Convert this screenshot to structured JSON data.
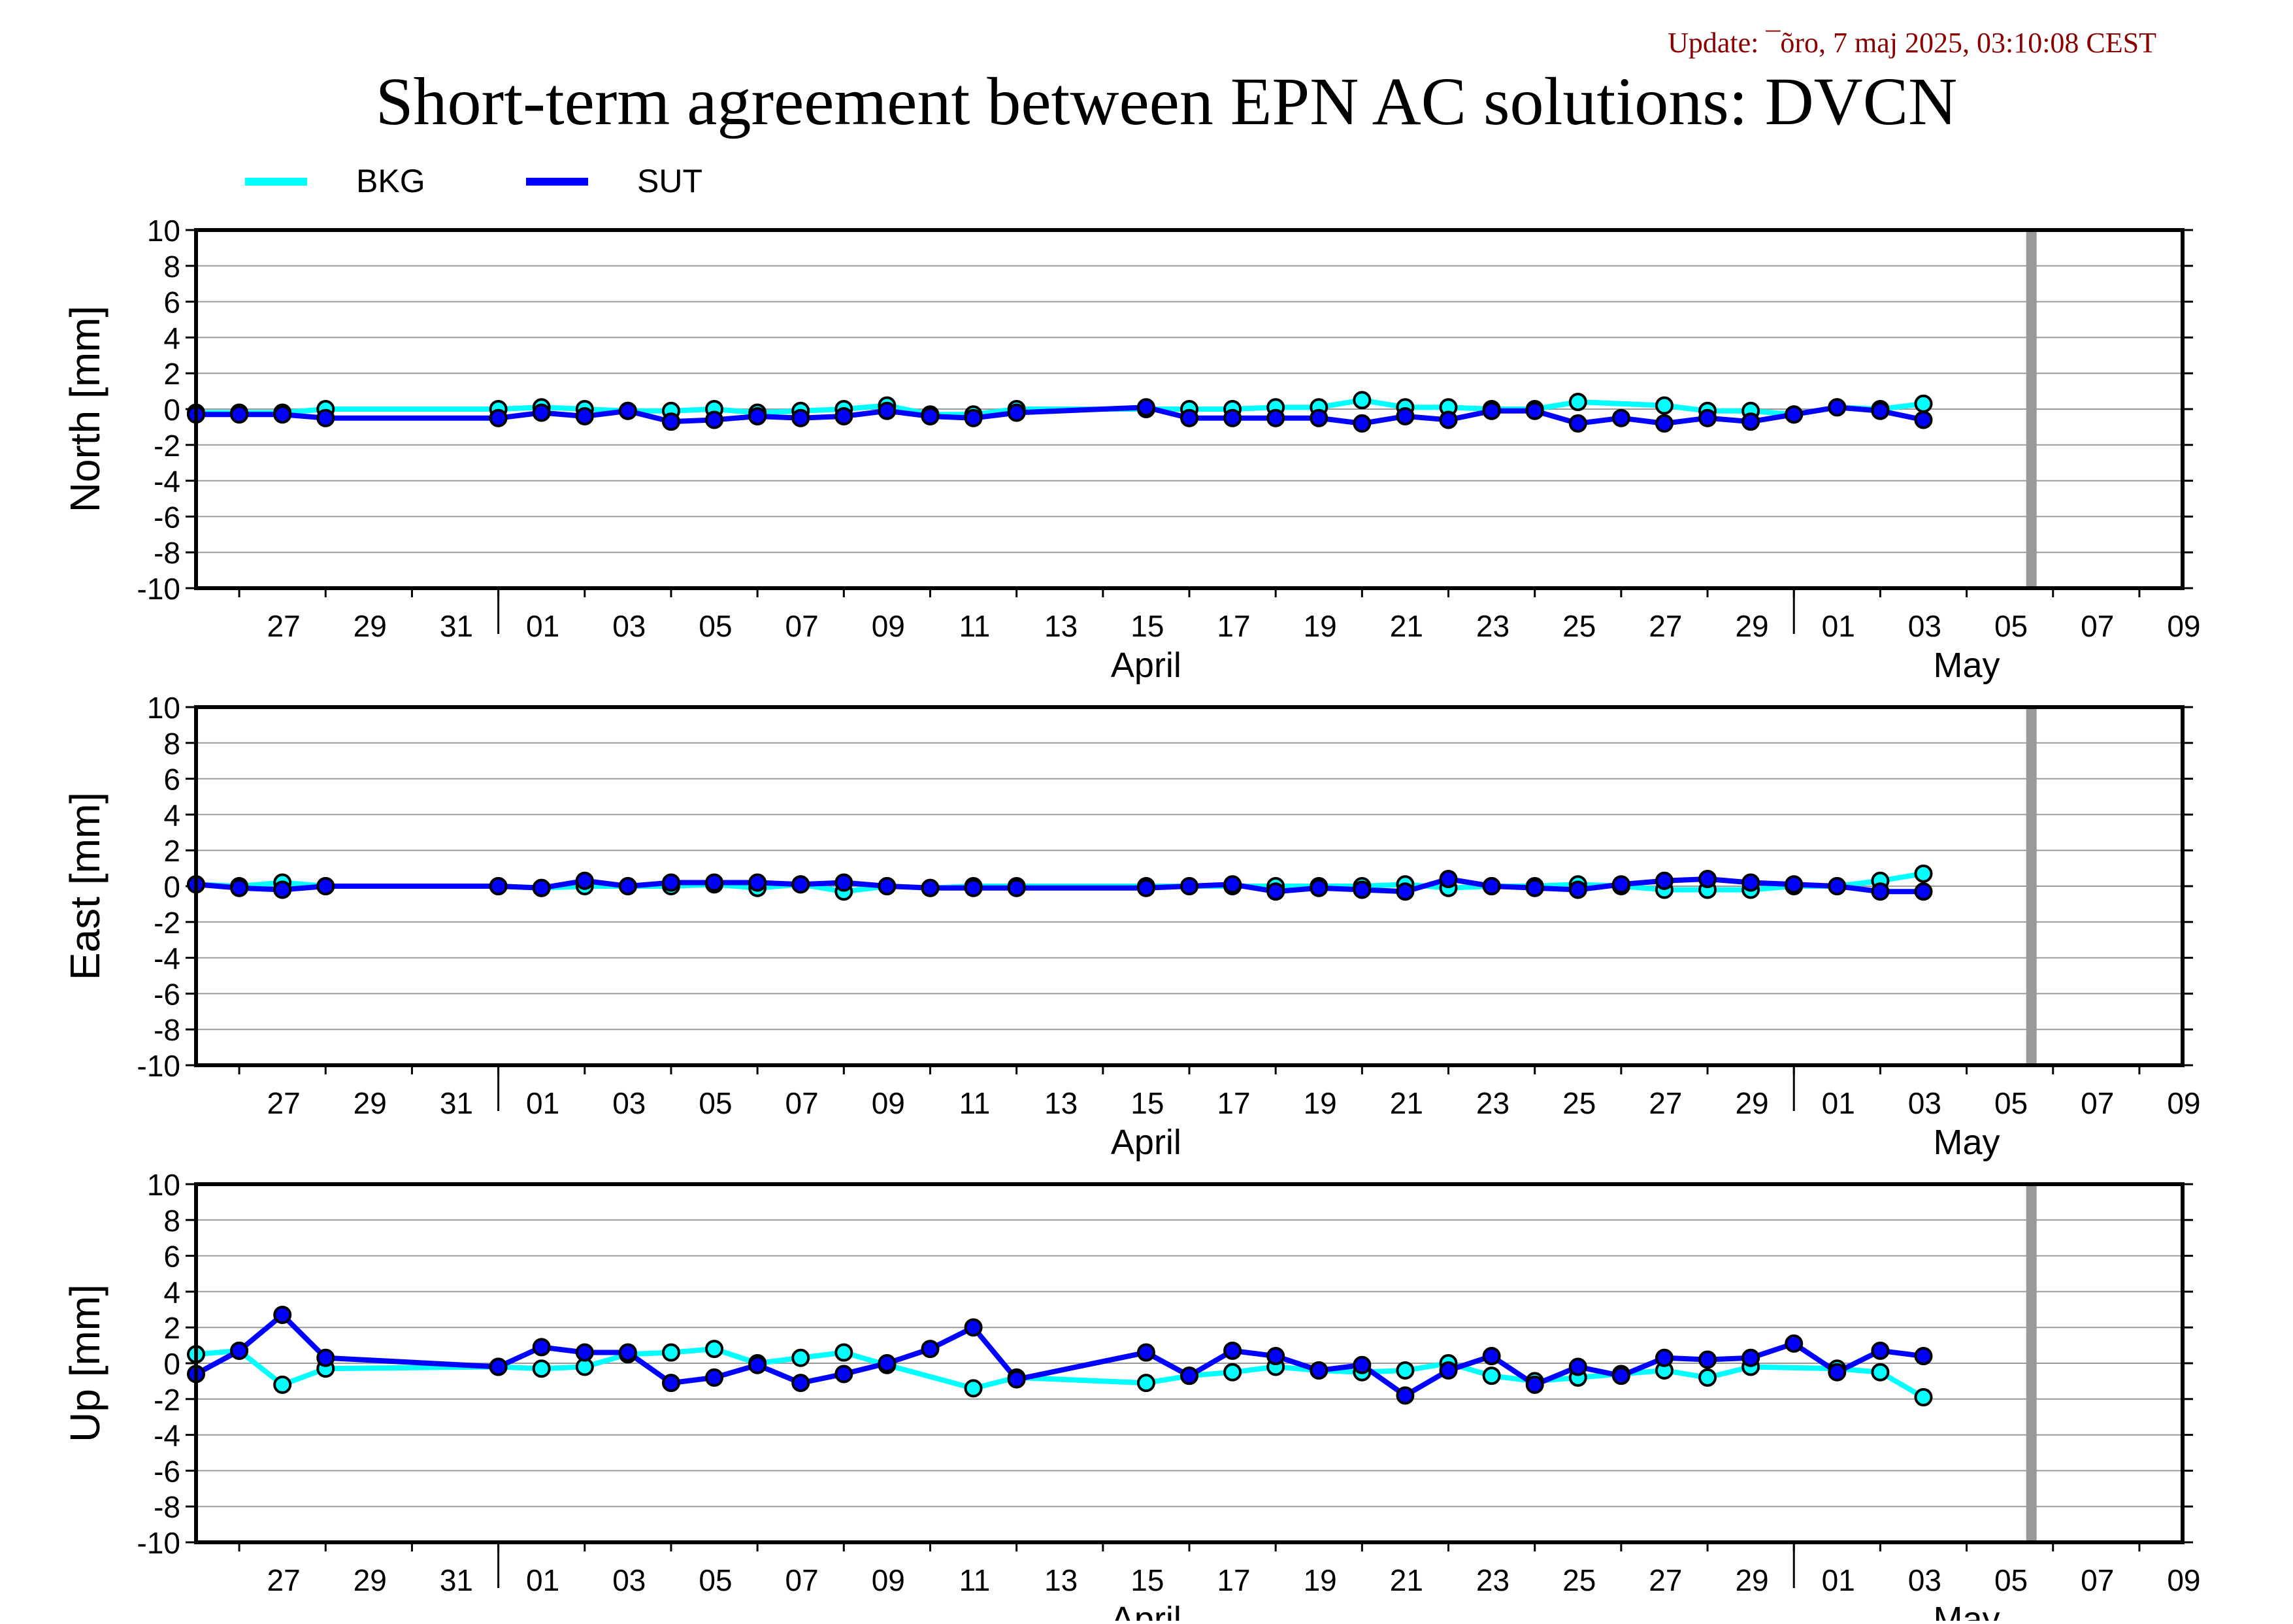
{
  "update_text": "Update: ¯õro, 7 maj 2025, 03:10:08 CEST",
  "title": "Short-term agreement between EPN AC solutions: DVCN",
  "legend": [
    {
      "name": "BKG",
      "color": "#00ffff"
    },
    {
      "name": "SUT",
      "color": "#0000ff"
    }
  ],
  "colors": {
    "bkg": "#00ffff",
    "sut": "#0000ff",
    "marker_edge": "#000000",
    "today_line": "#999999",
    "update_text": "#8b0000"
  },
  "chart_data": [
    {
      "type": "line",
      "ylabel": "North [mm]",
      "ylim": [
        -10,
        10
      ],
      "yticks": [
        10,
        8,
        6,
        4,
        2,
        0,
        -2,
        -4,
        -6,
        -8,
        -10
      ],
      "grid": true,
      "x_range": [
        "2025-03-25",
        "2025-05-10"
      ],
      "x_tick_labels": [
        "27",
        "29",
        "31",
        "01",
        "03",
        "05",
        "07",
        "09",
        "11",
        "13",
        "15",
        "17",
        "19",
        "21",
        "23",
        "25",
        "27",
        "29",
        "01",
        "03",
        "05",
        "07",
        "09"
      ],
      "month_labels": [
        "April",
        "May"
      ],
      "today_marker": "2025-05-06",
      "series": [
        {
          "name": "BKG",
          "points": [
            [
              "2025-03-25",
              -0.2
            ],
            [
              "2025-03-26",
              -0.2
            ],
            [
              "2025-03-27",
              -0.2
            ],
            [
              "2025-03-28",
              0
            ],
            [
              "2025-04-01",
              0
            ],
            [
              "2025-04-02",
              0.1
            ],
            [
              "2025-04-03",
              0
            ],
            [
              "2025-04-04",
              -0.1
            ],
            [
              "2025-04-05",
              -0.1
            ],
            [
              "2025-04-06",
              0
            ],
            [
              "2025-04-07",
              -0.2
            ],
            [
              "2025-04-08",
              -0.1
            ],
            [
              "2025-04-09",
              0
            ],
            [
              "2025-04-10",
              0.2
            ],
            [
              "2025-04-11",
              -0.3
            ],
            [
              "2025-04-12",
              -0.3
            ],
            [
              "2025-04-13",
              0
            ],
            [
              "2025-04-16",
              0
            ],
            [
              "2025-04-17",
              0
            ],
            [
              "2025-04-18",
              0
            ],
            [
              "2025-04-19",
              0.1
            ],
            [
              "2025-04-20",
              0.1
            ],
            [
              "2025-04-21",
              0.5
            ],
            [
              "2025-04-22",
              0.1
            ],
            [
              "2025-04-23",
              0.1
            ],
            [
              "2025-04-24",
              0
            ],
            [
              "2025-04-25",
              0
            ],
            [
              "2025-04-26",
              0.4
            ],
            [
              "2025-04-28",
              0.2
            ],
            [
              "2025-04-29",
              -0.1
            ],
            [
              "2025-04-30",
              -0.1
            ],
            [
              "2025-05-01",
              -0.3
            ],
            [
              "2025-05-02",
              0.1
            ],
            [
              "2025-05-03",
              0
            ],
            [
              "2025-05-04",
              0.3
            ]
          ]
        },
        {
          "name": "SUT",
          "points": [
            [
              "2025-03-25",
              -0.3
            ],
            [
              "2025-03-26",
              -0.3
            ],
            [
              "2025-03-27",
              -0.3
            ],
            [
              "2025-03-28",
              -0.5
            ],
            [
              "2025-04-01",
              -0.5
            ],
            [
              "2025-04-02",
              -0.2
            ],
            [
              "2025-04-03",
              -0.4
            ],
            [
              "2025-04-04",
              -0.1
            ],
            [
              "2025-04-05",
              -0.7
            ],
            [
              "2025-04-06",
              -0.6
            ],
            [
              "2025-04-07",
              -0.4
            ],
            [
              "2025-04-08",
              -0.5
            ],
            [
              "2025-04-09",
              -0.4
            ],
            [
              "2025-04-10",
              -0.1
            ],
            [
              "2025-04-11",
              -0.4
            ],
            [
              "2025-04-12",
              -0.5
            ],
            [
              "2025-04-13",
              -0.2
            ],
            [
              "2025-04-16",
              0.1
            ],
            [
              "2025-04-17",
              -0.5
            ],
            [
              "2025-04-18",
              -0.5
            ],
            [
              "2025-04-19",
              -0.5
            ],
            [
              "2025-04-20",
              -0.5
            ],
            [
              "2025-04-21",
              -0.8
            ],
            [
              "2025-04-22",
              -0.4
            ],
            [
              "2025-04-23",
              -0.6
            ],
            [
              "2025-04-24",
              -0.1
            ],
            [
              "2025-04-25",
              -0.1
            ],
            [
              "2025-04-26",
              -0.8
            ],
            [
              "2025-04-27",
              -0.5
            ],
            [
              "2025-04-28",
              -0.8
            ],
            [
              "2025-04-29",
              -0.5
            ],
            [
              "2025-04-30",
              -0.7
            ],
            [
              "2025-05-01",
              -0.3
            ],
            [
              "2025-05-02",
              0.1
            ],
            [
              "2025-05-03",
              -0.1
            ],
            [
              "2025-05-04",
              -0.6
            ]
          ]
        }
      ]
    },
    {
      "type": "line",
      "ylabel": "East [mm]",
      "ylim": [
        -10,
        10
      ],
      "yticks": [
        10,
        8,
        6,
        4,
        2,
        0,
        -2,
        -4,
        -6,
        -8,
        -10
      ],
      "grid": true,
      "x_range": [
        "2025-03-25",
        "2025-05-10"
      ],
      "x_tick_labels": [
        "27",
        "29",
        "31",
        "01",
        "03",
        "05",
        "07",
        "09",
        "11",
        "13",
        "15",
        "17",
        "19",
        "21",
        "23",
        "25",
        "27",
        "29",
        "01",
        "03",
        "05",
        "07",
        "09"
      ],
      "month_labels": [
        "April",
        "May"
      ],
      "today_marker": "2025-05-06",
      "series": [
        {
          "name": "BKG",
          "points": [
            [
              "2025-03-25",
              0.1
            ],
            [
              "2025-03-26",
              0
            ],
            [
              "2025-03-27",
              0.2
            ],
            [
              "2025-03-28",
              0
            ],
            [
              "2025-04-01",
              0
            ],
            [
              "2025-04-02",
              -0.1
            ],
            [
              "2025-04-03",
              0
            ],
            [
              "2025-04-04",
              0
            ],
            [
              "2025-04-05",
              0
            ],
            [
              "2025-04-06",
              0.1
            ],
            [
              "2025-04-07",
              -0.1
            ],
            [
              "2025-04-08",
              0.1
            ],
            [
              "2025-04-09",
              -0.3
            ],
            [
              "2025-04-10",
              0
            ],
            [
              "2025-04-11",
              -0.1
            ],
            [
              "2025-04-12",
              0
            ],
            [
              "2025-04-13",
              0
            ],
            [
              "2025-04-16",
              0
            ],
            [
              "2025-04-17",
              0
            ],
            [
              "2025-04-18",
              0
            ],
            [
              "2025-04-19",
              0
            ],
            [
              "2025-04-20",
              0
            ],
            [
              "2025-04-21",
              0
            ],
            [
              "2025-04-22",
              0.1
            ],
            [
              "2025-04-23",
              -0.1
            ],
            [
              "2025-04-24",
              0
            ],
            [
              "2025-04-25",
              0
            ],
            [
              "2025-04-26",
              0.1
            ],
            [
              "2025-04-27",
              0
            ],
            [
              "2025-04-28",
              -0.2
            ],
            [
              "2025-04-29",
              -0.2
            ],
            [
              "2025-04-30",
              -0.2
            ],
            [
              "2025-05-01",
              0
            ],
            [
              "2025-05-02",
              0
            ],
            [
              "2025-05-03",
              0.3
            ],
            [
              "2025-05-04",
              0.7
            ]
          ]
        },
        {
          "name": "SUT",
          "points": [
            [
              "2025-03-25",
              0.1
            ],
            [
              "2025-03-26",
              -0.1
            ],
            [
              "2025-03-27",
              -0.2
            ],
            [
              "2025-03-28",
              0
            ],
            [
              "2025-04-01",
              0
            ],
            [
              "2025-04-02",
              -0.1
            ],
            [
              "2025-04-03",
              0.3
            ],
            [
              "2025-04-04",
              0
            ],
            [
              "2025-04-05",
              0.2
            ],
            [
              "2025-04-06",
              0.2
            ],
            [
              "2025-04-07",
              0.2
            ],
            [
              "2025-04-08",
              0.1
            ],
            [
              "2025-04-09",
              0.2
            ],
            [
              "2025-04-10",
              0
            ],
            [
              "2025-04-11",
              -0.1
            ],
            [
              "2025-04-12",
              -0.1
            ],
            [
              "2025-04-13",
              -0.1
            ],
            [
              "2025-04-16",
              -0.1
            ],
            [
              "2025-04-17",
              0
            ],
            [
              "2025-04-18",
              0.1
            ],
            [
              "2025-04-19",
              -0.3
            ],
            [
              "2025-04-20",
              -0.1
            ],
            [
              "2025-04-21",
              -0.2
            ],
            [
              "2025-04-22",
              -0.3
            ],
            [
              "2025-04-23",
              0.4
            ],
            [
              "2025-04-24",
              0
            ],
            [
              "2025-04-25",
              -0.1
            ],
            [
              "2025-04-26",
              -0.2
            ],
            [
              "2025-04-27",
              0.1
            ],
            [
              "2025-04-28",
              0.3
            ],
            [
              "2025-04-29",
              0.4
            ],
            [
              "2025-04-30",
              0.2
            ],
            [
              "2025-05-01",
              0.1
            ],
            [
              "2025-05-02",
              0
            ],
            [
              "2025-05-03",
              -0.3
            ],
            [
              "2025-05-04",
              -0.3
            ]
          ]
        }
      ]
    },
    {
      "type": "line",
      "ylabel": "Up [mm]",
      "ylim": [
        -10,
        10
      ],
      "yticks": [
        10,
        8,
        6,
        4,
        2,
        0,
        -2,
        -4,
        -6,
        -8,
        -10
      ],
      "grid": true,
      "x_range": [
        "2025-03-25",
        "2025-05-10"
      ],
      "x_tick_labels": [
        "27",
        "29",
        "31",
        "01",
        "03",
        "05",
        "07",
        "09",
        "11",
        "13",
        "15",
        "17",
        "19",
        "21",
        "23",
        "25",
        "27",
        "29",
        "01",
        "03",
        "05",
        "07",
        "09"
      ],
      "month_labels": [
        "April",
        "May"
      ],
      "today_marker": "2025-05-06",
      "series": [
        {
          "name": "BKG",
          "points": [
            [
              "2025-03-25",
              0.5
            ],
            [
              "2025-03-26",
              0.7
            ],
            [
              "2025-03-27",
              -1.2
            ],
            [
              "2025-03-28",
              -0.3
            ],
            [
              "2025-04-01",
              -0.2
            ],
            [
              "2025-04-02",
              -0.3
            ],
            [
              "2025-04-03",
              -0.2
            ],
            [
              "2025-04-04",
              0.5
            ],
            [
              "2025-04-05",
              0.6
            ],
            [
              "2025-04-06",
              0.8
            ],
            [
              "2025-04-07",
              0
            ],
            [
              "2025-04-08",
              0.3
            ],
            [
              "2025-04-09",
              0.6
            ],
            [
              "2025-04-10",
              -0.1
            ],
            [
              "2025-04-12",
              -1.4
            ],
            [
              "2025-04-13",
              -0.8
            ],
            [
              "2025-04-16",
              -1.1
            ],
            [
              "2025-04-17",
              -0.7
            ],
            [
              "2025-04-18",
              -0.5
            ],
            [
              "2025-04-19",
              -0.2
            ],
            [
              "2025-04-20",
              -0.4
            ],
            [
              "2025-04-21",
              -0.5
            ],
            [
              "2025-04-22",
              -0.4
            ],
            [
              "2025-04-23",
              0
            ],
            [
              "2025-04-24",
              -0.7
            ],
            [
              "2025-04-25",
              -1
            ],
            [
              "2025-04-26",
              -0.8
            ],
            [
              "2025-04-27",
              -0.6
            ],
            [
              "2025-04-28",
              -0.4
            ],
            [
              "2025-04-29",
              -0.8
            ],
            [
              "2025-04-30",
              -0.2
            ],
            [
              "2025-05-02",
              -0.3
            ],
            [
              "2025-05-03",
              -0.5
            ],
            [
              "2025-05-04",
              -1.9
            ]
          ]
        },
        {
          "name": "SUT",
          "points": [
            [
              "2025-03-25",
              -0.6
            ],
            [
              "2025-03-26",
              0.7
            ],
            [
              "2025-03-27",
              2.7
            ],
            [
              "2025-03-28",
              0.3
            ],
            [
              "2025-04-01",
              -0.2
            ],
            [
              "2025-04-02",
              0.9
            ],
            [
              "2025-04-03",
              0.6
            ],
            [
              "2025-04-04",
              0.6
            ],
            [
              "2025-04-05",
              -1.1
            ],
            [
              "2025-04-06",
              -0.8
            ],
            [
              "2025-04-07",
              -0.1
            ],
            [
              "2025-04-08",
              -1.1
            ],
            [
              "2025-04-09",
              -0.6
            ],
            [
              "2025-04-10",
              0
            ],
            [
              "2025-04-11",
              0.8
            ],
            [
              "2025-04-12",
              2
            ],
            [
              "2025-04-13",
              -0.9
            ],
            [
              "2025-04-16",
              0.6
            ],
            [
              "2025-04-17",
              -0.7
            ],
            [
              "2025-04-18",
              0.7
            ],
            [
              "2025-04-19",
              0.4
            ],
            [
              "2025-04-20",
              -0.4
            ],
            [
              "2025-04-21",
              -0.1
            ],
            [
              "2025-04-22",
              -1.8
            ],
            [
              "2025-04-23",
              -0.4
            ],
            [
              "2025-04-24",
              0.4
            ],
            [
              "2025-04-25",
              -1.2
            ],
            [
              "2025-04-26",
              -0.2
            ],
            [
              "2025-04-27",
              -0.7
            ],
            [
              "2025-04-28",
              0.3
            ],
            [
              "2025-04-29",
              0.2
            ],
            [
              "2025-04-30",
              0.3
            ],
            [
              "2025-05-01",
              1.1
            ],
            [
              "2025-05-02",
              -0.5
            ],
            [
              "2025-05-03",
              0.7
            ],
            [
              "2025-05-04",
              0.4
            ]
          ]
        }
      ]
    }
  ]
}
